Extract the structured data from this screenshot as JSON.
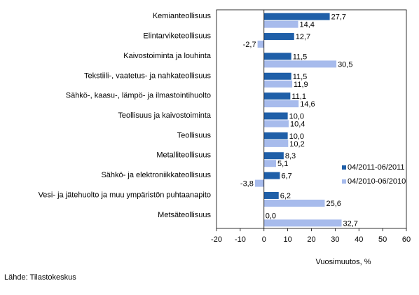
{
  "chart_data": {
    "type": "bar",
    "orientation": "horizontal",
    "categories": [
      "Kemianteollisuus",
      "Elintarviketeollisuus",
      "Kaivostoiminta ja louhinta",
      "Tekstiili-, vaatetus- ja nahkateollisuus",
      "Sähkö-, kaasu-, lämpö- ja ilmastointihuolto",
      "Teollisuus ja kaivostoiminta",
      "Teollisuus",
      "Metalliteollisuus",
      "Sähkö- ja elektroniikkateollisuus",
      "Vesi- ja jätehuolto ja muu ympäristön puhtaanapito",
      "Metsäteollisuus"
    ],
    "series": [
      {
        "name": "04/2011-06/2011",
        "color": "#1f5fa8",
        "values": [
          27.7,
          12.7,
          11.5,
          11.5,
          11.1,
          10.0,
          10.0,
          8.3,
          6.7,
          6.2,
          0.0
        ],
        "labels": [
          "27,7",
          "12,7",
          "11,5",
          "11,5",
          "11,1",
          "10,0",
          "10,0",
          "8,3",
          "6,7",
          "6,2",
          "0,0"
        ]
      },
      {
        "name": "04/2010-06/2010",
        "color": "#a7bbec",
        "values": [
          14.4,
          -2.7,
          30.5,
          11.9,
          14.6,
          10.4,
          10.2,
          5.1,
          -3.8,
          25.6,
          32.7
        ],
        "labels": [
          "14,4",
          "-2,7",
          "30,5",
          "11,9",
          "14,6",
          "10,4",
          "10,2",
          "5,1",
          "-3,8",
          "25,6",
          "32,7"
        ]
      }
    ],
    "xlim": [
      -20,
      60
    ],
    "xticks": [
      -20,
      -10,
      0,
      10,
      20,
      30,
      40,
      50,
      60
    ],
    "xlabel": "Vuosimuutos, %",
    "grid": false,
    "legend_position": "right"
  },
  "source": "Lähde: Tilastokeskus"
}
